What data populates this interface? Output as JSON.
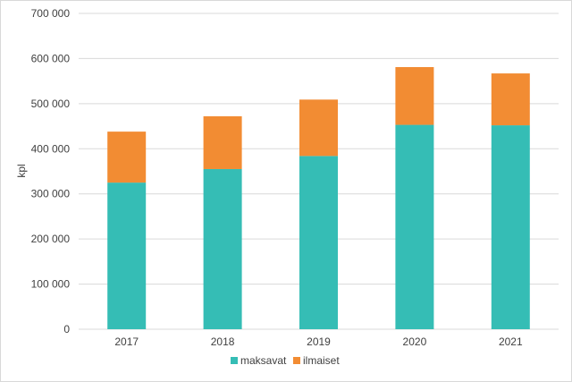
{
  "chart_data": {
    "type": "bar",
    "stacked": true,
    "categories": [
      "2017",
      "2018",
      "2019",
      "2020",
      "2021"
    ],
    "series": [
      {
        "name": "maksavat",
        "color": "#35bdb5",
        "values": [
          325000,
          355000,
          384000,
          453000,
          452000
        ]
      },
      {
        "name": "ilmaiset",
        "color": "#f28c33",
        "values": [
          113000,
          117000,
          125000,
          128000,
          115000
        ]
      }
    ],
    "ylabel": "kpl",
    "ylim": [
      0,
      700000
    ],
    "yticks": [
      0,
      100000,
      200000,
      300000,
      400000,
      500000,
      600000,
      700000
    ],
    "ytick_labels": [
      "0",
      "100 000",
      "200 000",
      "300 000",
      "400 000",
      "500 000",
      "600 000",
      "700 000"
    ],
    "grid": true,
    "gridline_color": "#d9d9d9",
    "legend_position": "bottom"
  }
}
